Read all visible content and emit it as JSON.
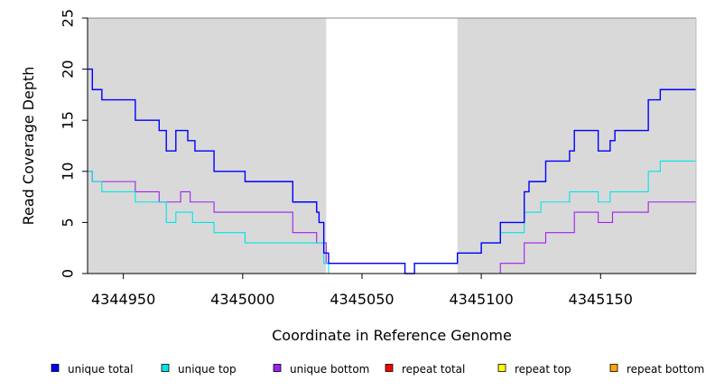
{
  "chart_data": {
    "type": "line",
    "xlabel": "Coordinate in Reference Genome",
    "ylabel": "Read Coverage Depth",
    "xlim": [
      4344935,
      4345190
    ],
    "ylim": [
      0,
      25
    ],
    "x_ticks": [
      4344950,
      4345000,
      4345050,
      4345100,
      4345150
    ],
    "y_ticks": [
      0,
      5,
      10,
      15,
      20,
      25
    ],
    "grid": false,
    "background_color": "#d9d9d9",
    "highlight_region": {
      "x": [
        4345035,
        4345090
      ],
      "color": "#ffffff"
    },
    "step": true,
    "series": [
      {
        "name": "unique total",
        "color": "#0000ff",
        "points": [
          [
            4344935,
            20
          ],
          [
            4344937,
            18
          ],
          [
            4344941,
            17
          ],
          [
            4344955,
            15
          ],
          [
            4344965,
            14
          ],
          [
            4344968,
            12
          ],
          [
            4344972,
            14
          ],
          [
            4344977,
            13
          ],
          [
            4344980,
            12
          ],
          [
            4344988,
            10
          ],
          [
            4345001,
            9
          ],
          [
            4345021,
            7
          ],
          [
            4345031,
            6
          ],
          [
            4345032,
            5
          ],
          [
            4345034,
            2
          ],
          [
            4345036,
            1
          ],
          [
            4345068,
            0
          ],
          [
            4345072,
            1
          ],
          [
            4345090,
            2
          ],
          [
            4345100,
            3
          ],
          [
            4345108,
            5
          ],
          [
            4345118,
            8
          ],
          [
            4345120,
            9
          ],
          [
            4345127,
            11
          ],
          [
            4345137,
            12
          ],
          [
            4345139,
            14
          ],
          [
            4345149,
            12
          ],
          [
            4345154,
            13
          ],
          [
            4345156,
            14
          ],
          [
            4345170,
            17
          ],
          [
            4345175,
            18
          ],
          [
            4345190,
            18
          ]
        ]
      },
      {
        "name": "unique top",
        "color": "#00e5e5",
        "points": [
          [
            4344935,
            10
          ],
          [
            4344937,
            9
          ],
          [
            4344941,
            8
          ],
          [
            4344955,
            7
          ],
          [
            4344964,
            7
          ],
          [
            4344968,
            5
          ],
          [
            4344972,
            6
          ],
          [
            4344979,
            5
          ],
          [
            4344988,
            4
          ],
          [
            4345001,
            3
          ],
          [
            4345021,
            3
          ],
          [
            4345031,
            3
          ],
          [
            4345034,
            1
          ],
          [
            4345036,
            0
          ],
          [
            4345072,
            1
          ],
          [
            4345090,
            2
          ],
          [
            4345100,
            3
          ],
          [
            4345108,
            4
          ],
          [
            4345118,
            6
          ],
          [
            4345125,
            7
          ],
          [
            4345137,
            8
          ],
          [
            4345149,
            7
          ],
          [
            4345154,
            8
          ],
          [
            4345170,
            10
          ],
          [
            4345175,
            11
          ],
          [
            4345190,
            11
          ]
        ]
      },
      {
        "name": "unique bottom",
        "color": "#a020f0",
        "points": [
          [
            4344935,
            10
          ],
          [
            4344937,
            9
          ],
          [
            4344955,
            8
          ],
          [
            4344965,
            7
          ],
          [
            4344974,
            8
          ],
          [
            4344978,
            7
          ],
          [
            4344988,
            6
          ],
          [
            4345021,
            4
          ],
          [
            4345031,
            3
          ],
          [
            4345035,
            1
          ],
          [
            4345068,
            0
          ],
          [
            4345100,
            0
          ],
          [
            4345108,
            1
          ],
          [
            4345118,
            3
          ],
          [
            4345127,
            4
          ],
          [
            4345139,
            6
          ],
          [
            4345149,
            5
          ],
          [
            4345155,
            6
          ],
          [
            4345170,
            7
          ],
          [
            4345190,
            7
          ]
        ]
      },
      {
        "name": "repeat total",
        "color": "#ff0000",
        "points": [
          [
            4344935,
            0
          ],
          [
            4345190,
            0
          ]
        ]
      },
      {
        "name": "repeat top",
        "color": "#ffff00",
        "points": [
          [
            4344935,
            0
          ],
          [
            4345190,
            0
          ]
        ]
      },
      {
        "name": "repeat bottom",
        "color": "#ffa500",
        "points": [
          [
            4344935,
            0
          ],
          [
            4345190,
            0
          ]
        ]
      }
    ],
    "legend_position": "bottom"
  }
}
